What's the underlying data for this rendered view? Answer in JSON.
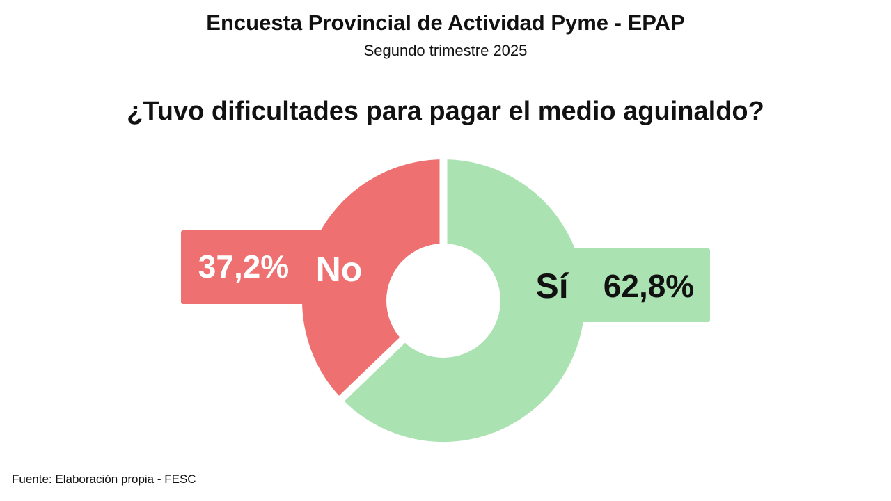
{
  "header": {
    "title": "Encuesta Provincial de Actividad Pyme - EPAP",
    "subtitle": "Segundo trimestre 2025"
  },
  "footer": {
    "source": "Fuente: Elaboración propia - FESC"
  },
  "chart_data": {
    "type": "pie",
    "title": "¿Tuvo dificultades para pagar el medio aguinaldo?",
    "categories": [
      "No",
      "Sí"
    ],
    "values": [
      37.2,
      62.8
    ],
    "value_labels": [
      "37,2%",
      "62,8%"
    ],
    "colors": [
      "#ee7070",
      "#abe2b1"
    ],
    "label_colors": [
      "#ffffff",
      "#111111"
    ],
    "donut": true
  }
}
